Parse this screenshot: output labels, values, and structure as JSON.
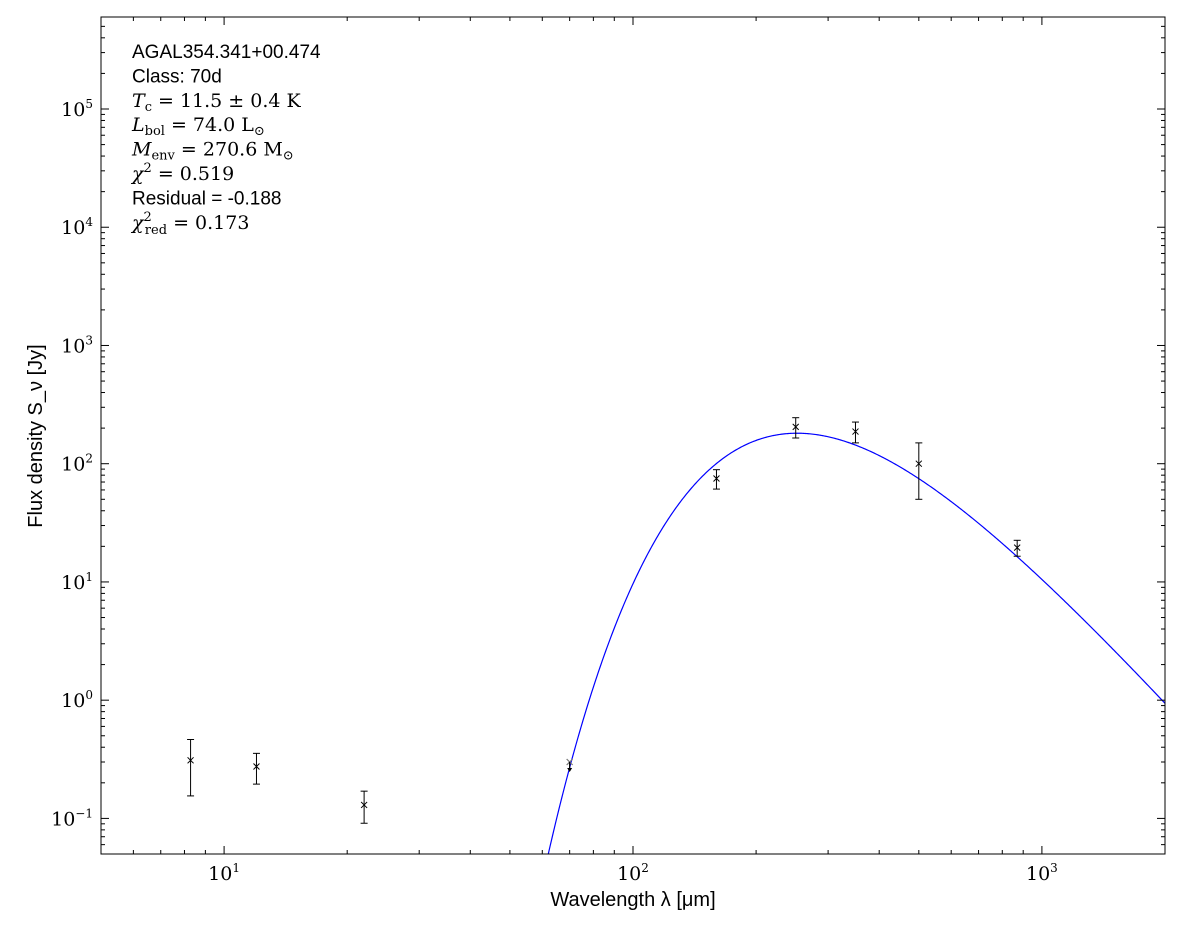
{
  "chart_data": {
    "type": "scatter",
    "xscale": "log",
    "yscale": "log",
    "xlim": [
      5,
      2000
    ],
    "ylim": [
      0.05,
      600000
    ],
    "xlabel": "Wavelength λ [μm]",
    "ylabel": "Flux density S_ν [Jy]",
    "xticks": [
      {
        "value": 10,
        "base": "10",
        "exp": "1"
      },
      {
        "value": 100,
        "base": "10",
        "exp": "2"
      },
      {
        "value": 1000,
        "base": "10",
        "exp": "3"
      }
    ],
    "yticks": [
      {
        "value": 0.1,
        "base": "10",
        "exp": "−1"
      },
      {
        "value": 1,
        "base": "10",
        "exp": "0"
      },
      {
        "value": 10,
        "base": "10",
        "exp": "1"
      },
      {
        "value": 100,
        "base": "10",
        "exp": "2"
      },
      {
        "value": 1000,
        "base": "10",
        "exp": "3"
      },
      {
        "value": 10000,
        "base": "10",
        "exp": "4"
      },
      {
        "value": 100000,
        "base": "10",
        "exp": "5"
      }
    ],
    "annotations": [
      {
        "kind": "plain",
        "text": "AGAL354.341+00.474"
      },
      {
        "kind": "plain",
        "text": "Class: 70d"
      },
      {
        "kind": "math",
        "sym": "T",
        "sub": "c",
        "sup": "",
        "rest": " = 11.5 ± 0.4 K"
      },
      {
        "kind": "math",
        "sym": "L",
        "sub": "bol",
        "sup": "",
        "rest": " = 74.0 L",
        "rest_sub": "⊙"
      },
      {
        "kind": "math",
        "sym": "M",
        "sub": "env",
        "sup": "",
        "rest": " = 270.6 M",
        "rest_sub": "⊙"
      },
      {
        "kind": "math",
        "sym": "χ",
        "sub": "",
        "sup": "2",
        "rest": " = 0.519"
      },
      {
        "kind": "plain",
        "text": "Residual = -0.188"
      },
      {
        "kind": "math",
        "sym": "χ",
        "sub": "red",
        "sup": "2",
        "rest": " = 0.173"
      }
    ],
    "points": [
      {
        "x": 8.28,
        "y": 0.31,
        "ylo": 0.155,
        "yhi": 0.465,
        "upper_limit": false
      },
      {
        "x": 12.0,
        "y": 0.275,
        "ylo": 0.195,
        "yhi": 0.355,
        "upper_limit": false
      },
      {
        "x": 22.0,
        "y": 0.13,
        "ylo": 0.091,
        "yhi": 0.17,
        "upper_limit": false
      },
      {
        "x": 70.0,
        "y": 0.3,
        "ylo": null,
        "yhi": null,
        "upper_limit": true
      },
      {
        "x": 160.0,
        "y": 75.0,
        "ylo": 61,
        "yhi": 89,
        "upper_limit": false
      },
      {
        "x": 250.0,
        "y": 205.0,
        "ylo": 165,
        "yhi": 245,
        "upper_limit": false
      },
      {
        "x": 350.0,
        "y": 187.0,
        "ylo": 150,
        "yhi": 225,
        "upper_limit": false
      },
      {
        "x": 500.0,
        "y": 100.0,
        "ylo": 50,
        "yhi": 150,
        "upper_limit": false
      },
      {
        "x": 870.0,
        "y": 19.5,
        "ylo": 16.5,
        "yhi": 22.5,
        "upper_limit": false
      }
    ],
    "model_curve": {
      "kind": "modified-blackbody",
      "T_K": 11.5,
      "peak_wavelength_um": 265,
      "peak_flux_Jy": 180,
      "color": "#0000ff"
    },
    "grid": false
  }
}
